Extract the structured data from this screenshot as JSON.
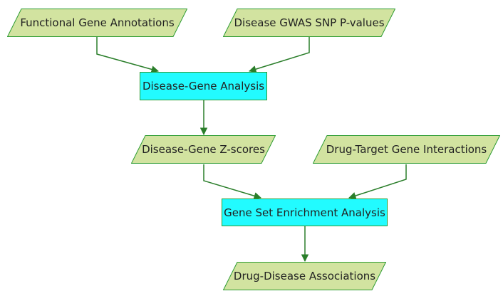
{
  "diagram": {
    "nodes": {
      "functional_gene_annotations": "Functional Gene Annotations",
      "disease_gwas_snp_pvalues": "Disease GWAS SNP P-values",
      "disease_gene_analysis": "Disease-Gene Analysis",
      "disease_gene_zscores": "Disease-Gene Z-scores",
      "drug_target_gene_interactions": "Drug-Target Gene Interactions",
      "gene_set_enrichment_analysis": "Gene Set Enrichment Analysis",
      "drug_disease_associations": "Drug-Disease Associations"
    },
    "colors": {
      "input_fill": "#d2e3a0",
      "input_stroke": "#2e9c33",
      "process_fill": "#22fbff",
      "process_stroke": "#2e9c33",
      "edge": "#2a7e2a"
    }
  }
}
